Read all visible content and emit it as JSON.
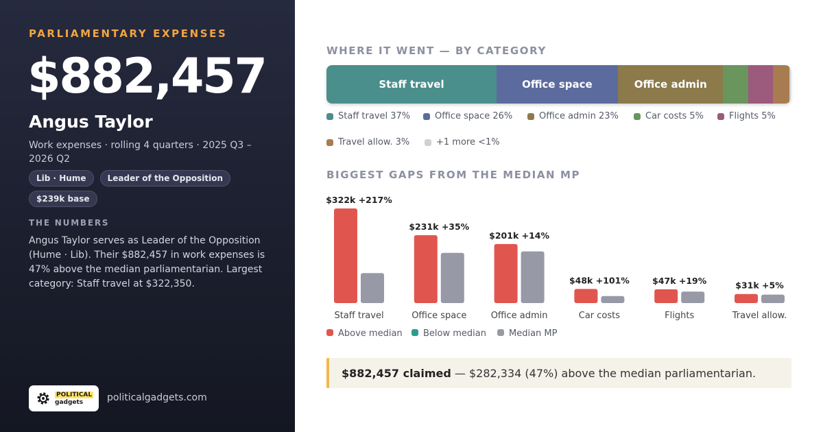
{
  "kicker": "PARLIAMENTARY EXPENSES",
  "total": "$882,457",
  "name": "Angus Taylor",
  "subtitle": "Work expenses · rolling 4 quarters · 2025 Q3 – 2026 Q2",
  "pills": [
    "Lib · Hume",
    "Leader of the Opposition",
    "$239k base"
  ],
  "numbers_label": "THE NUMBERS",
  "numbers_text": "Angus Taylor serves as Leader of the Opposition (Hume · Lib). Their $882,457 in work expenses is 47% above the median parliamentarian. Largest category: Staff travel at $322,350.",
  "logo": {
    "line1": "POLITICAL",
    "line2": "gadgets",
    "icon": "gear-icon"
  },
  "site": "politicalgadgets.com",
  "category_heading": "WHERE IT WENT — BY CATEGORY",
  "gaps_heading": "BIGGEST GAPS FROM THE MEDIAN MP",
  "chart_data": [
    {
      "type": "stacked-bar",
      "title": "WHERE IT WENT — BY CATEGORY",
      "segments": [
        {
          "name": "Staff travel",
          "bar_label": "Staff travel",
          "legend": "Staff travel 37%",
          "share": 36.6,
          "color": "#4a8f8c"
        },
        {
          "name": "Office space",
          "bar_label": "Office space",
          "legend": "Office space 26%",
          "share": 26.2,
          "color": "#5c6b9e"
        },
        {
          "name": "Office admin",
          "bar_label": "Office admin",
          "legend": "Office admin 23%",
          "share": 22.7,
          "color": "#8c7a4b"
        },
        {
          "name": "Car costs",
          "bar_label": "",
          "legend": "Car costs 5%",
          "share": 5.5,
          "color": "#6a955d"
        },
        {
          "name": "Flights",
          "bar_label": "",
          "legend": "Flights 5%",
          "share": 5.3,
          "color": "#9c5a7c"
        },
        {
          "name": "Travel allow.",
          "bar_label": "",
          "legend": "Travel allow. 3%",
          "share": 3.5,
          "color": "#a87c50"
        },
        {
          "name": "+1 more",
          "bar_label": "",
          "legend": "+1 more <1%",
          "share": 0.3,
          "color": "#cfd1d6"
        }
      ]
    },
    {
      "type": "bar",
      "title": "BIGGEST GAPS FROM THE MEDIAN MP",
      "categories": [
        "Staff travel",
        "Office space",
        "Office admin",
        "Car costs",
        "Flights",
        "Travel allow."
      ],
      "series": [
        {
          "name": "Above median",
          "values": [
            322,
            231,
            201,
            48,
            47,
            31
          ],
          "color": "#e0564f"
        },
        {
          "name": "Median MP",
          "values": [
            102,
            171,
            176,
            24,
            39,
            29
          ],
          "color": "#979aa6"
        }
      ],
      "bar_labels": [
        "$322k +217%",
        "$231k +35%",
        "$201k +14%",
        "$48k +101%",
        "$47k +19%",
        "$31k +5%"
      ],
      "legend": [
        {
          "name": "Above median",
          "color": "#e0564f"
        },
        {
          "name": "Below median",
          "color": "#2a9d8f"
        },
        {
          "name": "Median MP",
          "color": "#979aa6"
        }
      ],
      "unit": "$k",
      "ylim": [
        0,
        322
      ]
    }
  ],
  "callout": {
    "strong": "$882,457 claimed",
    "rest": " — $282,334 (47%) above the median parliamentarian."
  }
}
